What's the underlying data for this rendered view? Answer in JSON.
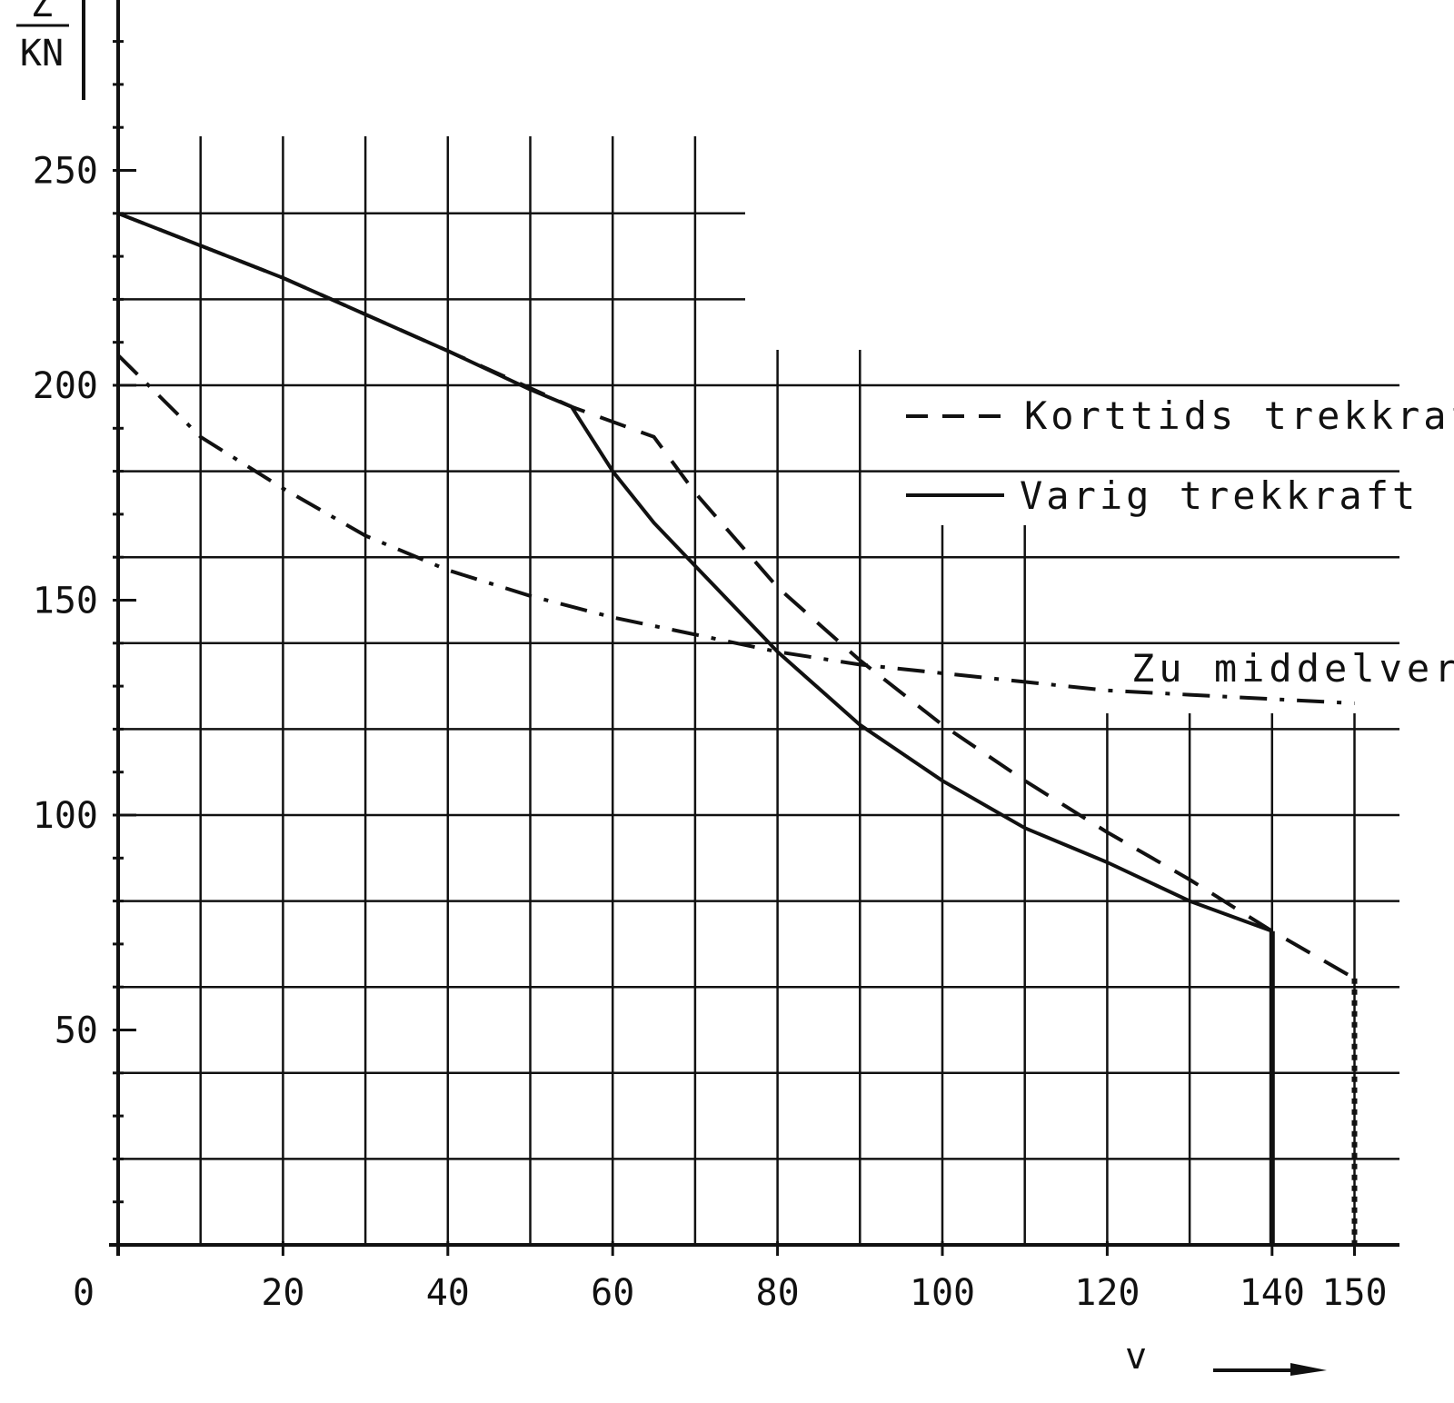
{
  "chart_data": {
    "type": "line",
    "xlabel": "v",
    "ylabel": "Z",
    "ylabel_unit": "KN",
    "xlim": [
      0,
      150
    ],
    "ylim": [
      0,
      280
    ],
    "x_ticks": [
      "0",
      "20",
      "40",
      "60",
      "80",
      "100",
      "120",
      "140",
      "150"
    ],
    "x_tick_values": [
      0,
      20,
      40,
      60,
      80,
      100,
      120,
      140,
      150
    ],
    "y_ticks": [
      "50",
      "100",
      "150",
      "200",
      "250"
    ],
    "y_tick_values": [
      50,
      100,
      150,
      200,
      250
    ],
    "grid": true,
    "legend_position": "top-right",
    "series": [
      {
        "name": "Korttids trekkraft",
        "style": "dashed",
        "x": [
          0,
          20,
          40,
          55,
          65,
          70,
          80,
          90,
          100,
          110,
          120,
          130,
          140,
          150
        ],
        "y": [
          240,
          225,
          208,
          195,
          188,
          175,
          153,
          136,
          121,
          108,
          96,
          85,
          73,
          62
        ]
      },
      {
        "name": "Varig trekkraft",
        "style": "solid",
        "x": [
          0,
          20,
          40,
          50,
          55,
          60,
          65,
          70,
          80,
          90,
          100,
          110,
          120,
          130,
          140
        ],
        "y": [
          240,
          225,
          208,
          199,
          195,
          180,
          168,
          158,
          138,
          121,
          108,
          97,
          89,
          80,
          73
        ]
      },
      {
        "name": "Zu middelverdi",
        "style": "dash-dot",
        "x": [
          0,
          10,
          20,
          30,
          40,
          50,
          60,
          70,
          80,
          90,
          100,
          110,
          120,
          130,
          140,
          150
        ],
        "y": [
          207,
          188,
          176,
          165,
          157,
          151,
          146,
          142,
          138,
          135,
          133,
          131,
          129,
          128,
          127,
          126
        ]
      }
    ],
    "annotation": "Zu middelverdi"
  }
}
